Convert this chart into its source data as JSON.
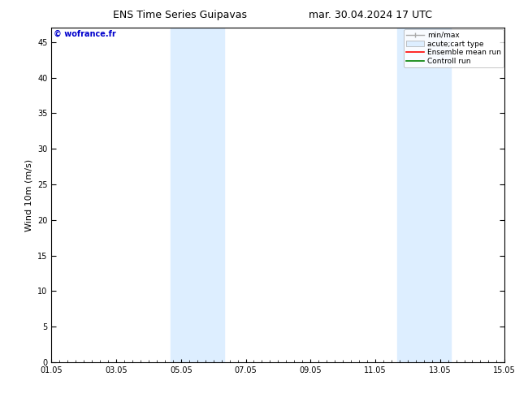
{
  "title_left": "ENS Time Series Guipavas",
  "title_right": "mar. 30.04.2024 17 UTC",
  "ylabel": "Wind 10m (m/s)",
  "copyright": "© wofrance.fr",
  "ymin": 0,
  "ymax": 47,
  "yticks": [
    0,
    5,
    10,
    15,
    20,
    25,
    30,
    35,
    40,
    45
  ],
  "xtick_labels": [
    "01.05",
    "03.05",
    "05.05",
    "07.05",
    "09.05",
    "11.05",
    "13.05",
    "15.05"
  ],
  "xtick_positions": [
    0,
    2,
    4,
    6,
    8,
    10,
    12,
    14
  ],
  "shaded_bands": [
    {
      "xstart": 3.67,
      "xend": 5.33
    },
    {
      "xstart": 10.67,
      "xend": 12.33
    }
  ],
  "background_color": "#ffffff",
  "band_color": "#ddeeff",
  "legend_items": [
    {
      "label": "min/max",
      "color": "#aaaaaa",
      "style": "minmax"
    },
    {
      "label": "acute;cart type",
      "color": "#ddeeff",
      "style": "fill"
    },
    {
      "label": "Ensemble mean run",
      "color": "#ff0000",
      "style": "line"
    },
    {
      "label": "Controll run",
      "color": "#008000",
      "style": "line"
    }
  ],
  "title_fontsize": 9,
  "axis_label_fontsize": 8,
  "tick_fontsize": 7,
  "legend_fontsize": 6.5,
  "copyright_color": "#0000cc",
  "copyright_fontsize": 7,
  "spine_color": "#000000"
}
